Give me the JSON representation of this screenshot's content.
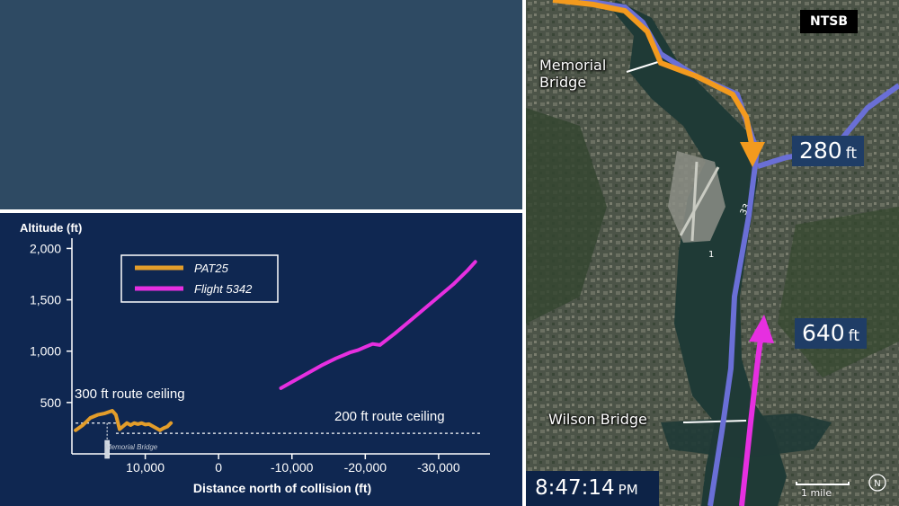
{
  "chart_data": {
    "type": "line",
    "ylabel": "Altitude (ft)",
    "xlabel": "Distance north of collision (ft)",
    "xlim": [
      20000,
      -37000
    ],
    "ylim": [
      0,
      2100
    ],
    "yticks": [
      500,
      1000,
      1500,
      2000
    ],
    "ytick_labels": [
      "500",
      "1,000",
      "1,500",
      "2,000"
    ],
    "xticks": [
      10000,
      0,
      -10000,
      -20000,
      -30000
    ],
    "xtick_labels": [
      "10,000",
      "0",
      "-10,000",
      "-20,000",
      "-30,000"
    ],
    "legend_position": "top-left",
    "series": [
      {
        "name": "PAT25",
        "color": "#e39d2a",
        "x": [
          19500,
          18500,
          17500,
          16500,
          15500,
          14500,
          14000,
          13500,
          13000,
          12500,
          12000,
          11500,
          11000,
          10500,
          10000,
          9500,
          9000,
          8500,
          8000,
          7500,
          7000,
          6500
        ],
        "y": [
          230,
          280,
          350,
          380,
          395,
          420,
          380,
          240,
          270,
          300,
          280,
          300,
          290,
          300,
          285,
          290,
          270,
          250,
          230,
          250,
          265,
          300
        ]
      },
      {
        "name": "Flight 5342",
        "color": "#e62fe0",
        "x": [
          -8500,
          -10000,
          -12000,
          -14000,
          -16000,
          -18000,
          -19000,
          -20000,
          -21000,
          -22000,
          -24000,
          -26000,
          -28000,
          -30000,
          -32000,
          -34000,
          -35000
        ],
        "y": [
          640,
          700,
          780,
          860,
          930,
          990,
          1010,
          1040,
          1070,
          1060,
          1170,
          1290,
          1410,
          1530,
          1650,
          1790,
          1870
        ]
      }
    ],
    "reference_lines": [
      {
        "label": "300 ft route ceiling",
        "y": 300,
        "x_range": [
          19500,
          14000
        ]
      },
      {
        "label": "200 ft route ceiling",
        "y": 200,
        "x_range": [
          14000,
          -36000
        ]
      }
    ],
    "annotations": [
      {
        "label": "Memorial Bridge",
        "x": 15200
      }
    ]
  },
  "map": {
    "source_badge": "NTSB",
    "memorial_bridge_label": "Memorial Bridge",
    "wilson_bridge_label": "Wilson Bridge",
    "pat25_altitude_value": "280",
    "flight_altitude_value": "640",
    "altitude_unit": "ft",
    "runway_label_33": "33",
    "runway_label_1": "1",
    "scale_label": "1 mile",
    "compass_letter": "N",
    "pat25_route_color": "#f39a1e",
    "flight_route_color": "#e62fe0",
    "route_color": "#6a6fd6"
  },
  "clock": {
    "time": "8:47:14",
    "ampm": "PM"
  }
}
